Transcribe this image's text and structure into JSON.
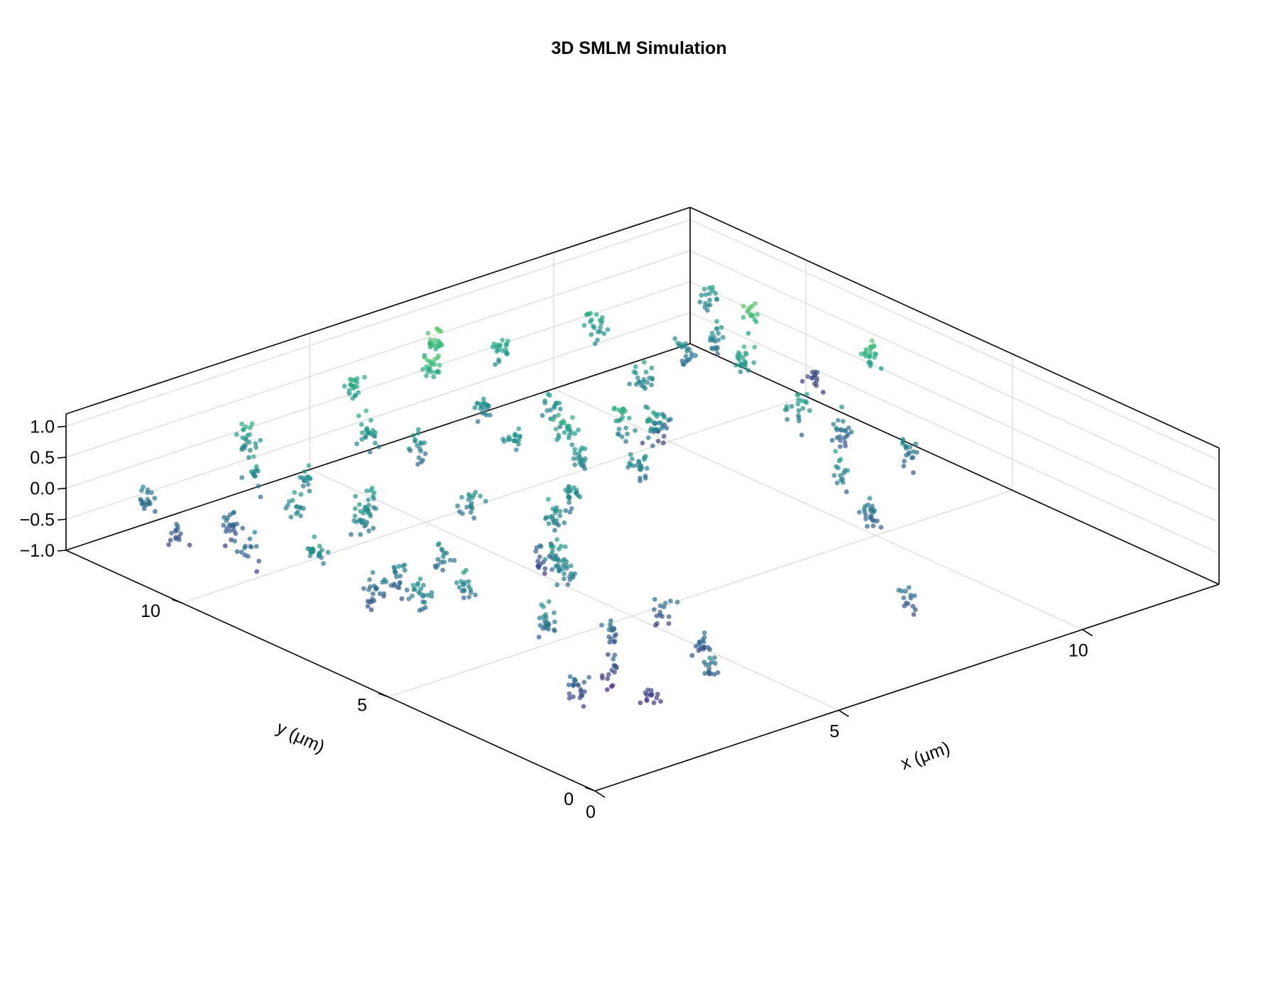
{
  "chart_data": {
    "type": "scatter3d",
    "title": "3D SMLM Simulation",
    "xlabel": "x (μm)",
    "ylabel": "y (μm)",
    "zlabel": "",
    "xlim": [
      0,
      12.8
    ],
    "ylim": [
      0,
      12.8
    ],
    "zlim": [
      -1.0,
      1.2
    ],
    "x_ticks": [
      "0",
      "5",
      "10"
    ],
    "y_ticks": [
      "0",
      "5",
      "10"
    ],
    "z_ticks": [
      "1.0",
      "0.5",
      "0.0",
      "−0.5",
      "−1.0"
    ],
    "colormap": "viridis",
    "grid": true,
    "legend": "none",
    "clusters": [
      {
        "x": 8.4,
        "y": 12.2,
        "z": 0.24
      },
      {
        "x": 10.2,
        "y": 12.0,
        "z": 0.2
      },
      {
        "x": 9.6,
        "y": 10.2,
        "z": 0.05
      },
      {
        "x": 11.6,
        "y": 10.8,
        "z": 0.0
      },
      {
        "x": 12.5,
        "y": 12.0,
        "z": 0.05
      },
      {
        "x": 8.5,
        "y": 8.6,
        "z": 0.15
      },
      {
        "x": 9.2,
        "y": 9.3,
        "z": -0.35
      },
      {
        "x": 11.0,
        "y": 9.4,
        "z": 0.25
      },
      {
        "x": 11.0,
        "y": 10.8,
        "z": -0.1
      },
      {
        "x": 11.8,
        "y": 10.2,
        "z": 0.55
      },
      {
        "x": 10.6,
        "y": 7.6,
        "z": 0.1
      },
      {
        "x": 12.4,
        "y": 8.0,
        "z": 0.4
      },
      {
        "x": 11.0,
        "y": 7.0,
        "z": -0.2
      },
      {
        "x": 12.6,
        "y": 9.6,
        "z": -0.6
      },
      {
        "x": 9.6,
        "y": 5.4,
        "z": -0.05
      },
      {
        "x": 11.2,
        "y": 5.6,
        "z": -0.1
      },
      {
        "x": 9.2,
        "y": 4.2,
        "z": -0.2
      },
      {
        "x": 7.6,
        "y": 1.4,
        "z": -0.3
      },
      {
        "x": 2.5,
        "y": 1.6,
        "z": -0.6
      },
      {
        "x": 3.4,
        "y": 1.2,
        "z": -0.3
      },
      {
        "x": 2.5,
        "y": 2.6,
        "z": -0.55
      },
      {
        "x": 4.0,
        "y": 2.2,
        "z": -0.4
      },
      {
        "x": 1.5,
        "y": 2.2,
        "z": -0.4
      },
      {
        "x": 3.2,
        "y": 3.4,
        "z": -0.3
      },
      {
        "x": 2.4,
        "y": 4.0,
        "z": -0.1
      },
      {
        "x": 4.5,
        "y": 3.6,
        "z": -0.3
      },
      {
        "x": 3.8,
        "y": 5.2,
        "z": 0.0
      },
      {
        "x": 4.0,
        "y": 5.7,
        "z": 0.0
      },
      {
        "x": 4.5,
        "y": 6.6,
        "z": -0.4
      },
      {
        "x": 4.4,
        "y": 8.2,
        "z": 0.0
      },
      {
        "x": 5.0,
        "y": 6.9,
        "z": 0.0
      },
      {
        "x": 2.8,
        "y": 7.0,
        "z": -0.1
      },
      {
        "x": 2.2,
        "y": 5.8,
        "z": 0.0
      },
      {
        "x": 1.5,
        "y": 6.0,
        "z": 0.0
      },
      {
        "x": 1.4,
        "y": 7.0,
        "z": -0.3
      },
      {
        "x": 1.9,
        "y": 7.0,
        "z": -0.2
      },
      {
        "x": 1.2,
        "y": 8.2,
        "z": 0.0
      },
      {
        "x": 1.0,
        "y": 9.6,
        "z": -0.2
      },
      {
        "x": 1.5,
        "y": 10.6,
        "z": -0.3
      },
      {
        "x": 0.8,
        "y": 11.0,
        "z": -0.4
      },
      {
        "x": 1.0,
        "y": 12.0,
        "z": -0.2
      },
      {
        "x": 2.2,
        "y": 9.8,
        "z": 0.0
      },
      {
        "x": 2.5,
        "y": 11.2,
        "z": 0.0
      },
      {
        "x": 3.0,
        "y": 10.5,
        "z": 0.0
      },
      {
        "x": 3.2,
        "y": 12.2,
        "z": 0.2
      },
      {
        "x": 4.8,
        "y": 11.2,
        "z": 0.1
      },
      {
        "x": 5.3,
        "y": 10.5,
        "z": 0.0
      },
      {
        "x": 5.6,
        "y": 12.4,
        "z": 0.3
      },
      {
        "x": 6.8,
        "y": 12.0,
        "z": 0.4
      },
      {
        "x": 7.4,
        "y": 12.6,
        "z": 0.5
      },
      {
        "x": 6.4,
        "y": 9.5,
        "z": 0.1
      },
      {
        "x": 6.8,
        "y": 8.4,
        "z": 0.05
      },
      {
        "x": 7.0,
        "y": 9.0,
        "z": 0.2
      },
      {
        "x": 7.8,
        "y": 10.2,
        "z": 0.0
      },
      {
        "x": 7.4,
        "y": 7.7,
        "z": 0.0
      },
      {
        "x": 3.2,
        "y": 9.2,
        "z": 0.0
      },
      {
        "x": 5.8,
        "y": 7.4,
        "z": 0.0
      },
      {
        "x": 2.7,
        "y": 8.8,
        "z": 0.0
      },
      {
        "x": 8.0,
        "y": 8.8,
        "z": 0.2
      },
      {
        "x": 7.0,
        "y": 11.0,
        "z": 0.0
      }
    ]
  }
}
